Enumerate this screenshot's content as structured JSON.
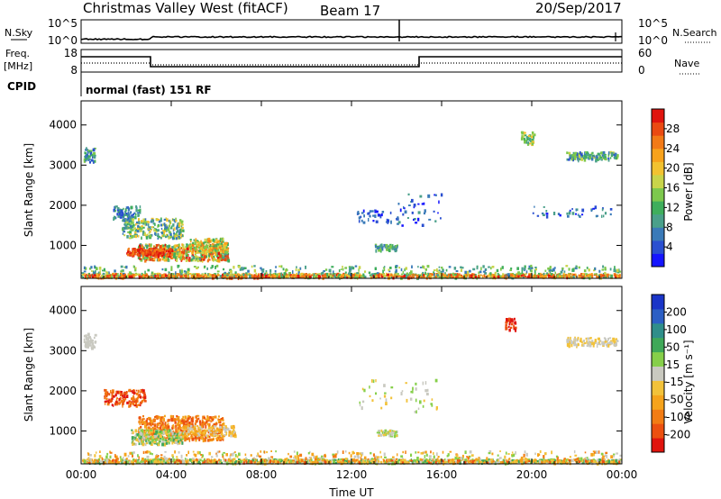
{
  "header": {
    "site": "Christmas Valley West (fitACF)",
    "beam": "Beam 17",
    "date": "20/Sep/2017"
  },
  "nsky_panel": {
    "label": "N.Sky",
    "label_right": "N.Search",
    "y_ticks_left": [
      "10^5",
      "10^0"
    ],
    "y_ticks_right": [
      "10^5",
      "10^0"
    ]
  },
  "freq_panel": {
    "label_line1": "Freq.",
    "label_line2": "[MHz]",
    "label_right": "Nave",
    "y_ticks_left": [
      "18",
      "8"
    ],
    "y_ticks_right": [
      "60",
      "0"
    ]
  },
  "cpid_panel": {
    "label": "CPID",
    "text": "normal (fast) 151 RF"
  },
  "chart_data": [
    {
      "type": "heatmap",
      "name": "power",
      "ylabel": "Slant Range [km]",
      "xlabel": "Time UT",
      "x_ticks": [
        "00:00",
        "04:00",
        "08:00",
        "12:00",
        "16:00",
        "20:00",
        "00:00"
      ],
      "y_ticks": [
        "1000",
        "2000",
        "3000",
        "4000"
      ],
      "ylim": [
        180,
        4600
      ],
      "xlim_hours": [
        0,
        24
      ],
      "colorbar": {
        "label": "Power [dB]",
        "ticks": [
          "4",
          "8",
          "12",
          "16",
          "20",
          "24",
          "28"
        ],
        "colors": [
          "#1515ff",
          "#2a4fd0",
          "#3a7ab8",
          "#4aa08a",
          "#3fae5c",
          "#7dc84d",
          "#c8d44a",
          "#f2c230",
          "#f7a21c",
          "#f27a17",
          "#ea4a12",
          "#e0140e"
        ]
      }
    },
    {
      "type": "heatmap",
      "name": "velocity",
      "ylabel": "Slant Range [km]",
      "xlabel": "Time UT",
      "x_ticks": [
        "00:00",
        "04:00",
        "08:00",
        "12:00",
        "16:00",
        "20:00",
        "00:00"
      ],
      "y_ticks": [
        "1000",
        "2000",
        "3000",
        "4000"
      ],
      "ylim": [
        180,
        4600
      ],
      "xlim_hours": [
        0,
        24
      ],
      "colorbar": {
        "label": "Velocity [m s⁻¹]",
        "ticks": [
          "200",
          "100",
          "50",
          "15",
          "-15",
          "-50",
          "-100",
          "-200"
        ],
        "colors": [
          "#1a35c8",
          "#2c5fc4",
          "#2f8e8a",
          "#3fa858",
          "#86cf4a",
          "#c9c9c0",
          "#f2c23a",
          "#f5a31c",
          "#f27c14",
          "#ec5010",
          "#e0140e"
        ]
      }
    }
  ],
  "xlabel": "Time UT"
}
